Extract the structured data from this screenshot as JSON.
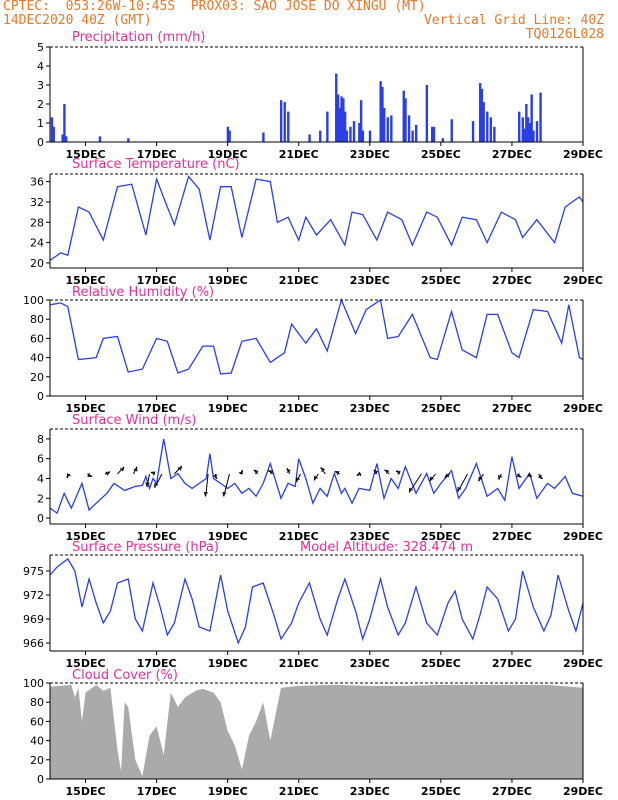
{
  "header": {
    "line1_left": "CPTEC:  053:26W-10:45S  PROX03: SAO JOSE DO XINGU (MT)",
    "line2_left": "14DEC2020 40Z (GMT)",
    "line2_right": "Vertical Grid Line: 40Z",
    "line3_right": "TQ0126L028"
  },
  "colors": {
    "header": "#e8782a",
    "title": "#e0309a",
    "line": "#2b3fe6",
    "cloud": "#aaaaaa",
    "axis": "#000000"
  },
  "x_axis": {
    "range_days": [
      14.0,
      29.0
    ],
    "ticks": [
      {
        "day": 15,
        "label": "15DEC"
      },
      {
        "day": 17,
        "label": "17DEC"
      },
      {
        "day": 19,
        "label": "19DEC"
      },
      {
        "day": 21,
        "label": "21DEC"
      },
      {
        "day": 23,
        "label": "23DEC"
      },
      {
        "day": 25,
        "label": "25DEC"
      },
      {
        "day": 27,
        "label": "27DEC"
      },
      {
        "day": 29,
        "label": "29DEC"
      }
    ]
  },
  "chart_data": [
    {
      "type": "bar",
      "title": "Precipitation (mm/h)",
      "ylim": [
        0,
        5
      ],
      "yticks": [
        0,
        1,
        2,
        3,
        4,
        5
      ],
      "x": [
        14.05,
        14.1,
        14.35,
        14.4,
        14.45,
        15.4,
        16.2,
        19.0,
        19.05,
        20.0,
        20.5,
        20.6,
        20.7,
        21.3,
        21.6,
        21.8,
        22.05,
        22.1,
        22.15,
        22.2,
        22.25,
        22.3,
        22.35,
        22.45,
        22.55,
        22.7,
        22.75,
        22.8,
        23.0,
        23.3,
        23.35,
        23.4,
        23.5,
        23.6,
        23.95,
        24.0,
        24.1,
        24.2,
        24.3,
        24.6,
        24.75,
        24.8,
        25.05,
        25.3,
        25.9,
        26.1,
        26.15,
        26.2,
        26.3,
        26.4,
        26.5,
        27.2,
        27.3,
        27.35,
        27.4,
        27.45,
        27.5,
        27.55,
        27.6,
        27.7,
        27.8
      ],
      "values": [
        1.3,
        0.8,
        0.4,
        2.0,
        0.3,
        0.3,
        0.2,
        0.8,
        0.6,
        0.5,
        2.2,
        2.1,
        1.6,
        0.4,
        0.6,
        1.6,
        3.6,
        2.5,
        1.8,
        2.4,
        2.3,
        1.6,
        0.6,
        0.8,
        1.1,
        1.0,
        2.2,
        0.6,
        0.6,
        3.2,
        2.9,
        1.8,
        1.3,
        1.4,
        2.7,
        2.3,
        1.4,
        0.6,
        0.9,
        3.0,
        0.8,
        0.8,
        0.2,
        1.2,
        1.1,
        3.1,
        2.8,
        2.1,
        1.6,
        1.3,
        0.8,
        1.6,
        1.3,
        0.7,
        2.0,
        1.3,
        1.0,
        2.5,
        0.6,
        1.1,
        2.6
      ]
    },
    {
      "type": "line",
      "title": "Surface Temperature (nC)",
      "ylim": [
        19,
        37.5
      ],
      "yticks": [
        20,
        24,
        28,
        32,
        36
      ],
      "x": [
        14.0,
        14.3,
        14.5,
        14.8,
        15.1,
        15.5,
        15.9,
        16.3,
        16.7,
        17.0,
        17.3,
        17.5,
        17.9,
        18.2,
        18.5,
        18.8,
        19.1,
        19.4,
        19.8,
        20.2,
        20.4,
        20.7,
        21.0,
        21.2,
        21.5,
        21.9,
        22.3,
        22.5,
        22.8,
        23.2,
        23.5,
        23.9,
        24.2,
        24.6,
        24.9,
        25.3,
        25.6,
        26.0,
        26.3,
        26.7,
        27.1,
        27.3,
        27.7,
        28.2,
        28.5,
        28.9,
        29.0
      ],
      "values": [
        20.5,
        22.0,
        21.5,
        31.0,
        30.0,
        24.5,
        35.0,
        35.5,
        25.5,
        36.5,
        31.0,
        27.5,
        37.0,
        34.5,
        24.5,
        35.0,
        35.0,
        25.0,
        36.5,
        36.0,
        28.0,
        29.0,
        24.5,
        29.0,
        25.5,
        28.5,
        23.5,
        30.0,
        29.5,
        24.5,
        30.0,
        28.5,
        23.5,
        30.0,
        29.0,
        23.5,
        29.0,
        28.5,
        24.0,
        30.0,
        28.5,
        25.0,
        28.5,
        24.0,
        31.0,
        33.0,
        32.0
      ]
    },
    {
      "type": "line",
      "title": "Relative Humidity (%)",
      "ylim": [
        0,
        100
      ],
      "yticks": [
        0,
        20,
        40,
        60,
        80,
        100
      ],
      "x": [
        14.0,
        14.3,
        14.5,
        14.8,
        15.3,
        15.5,
        15.9,
        16.2,
        16.6,
        17.0,
        17.3,
        17.6,
        17.9,
        18.3,
        18.6,
        18.8,
        19.1,
        19.4,
        19.8,
        20.2,
        20.6,
        20.8,
        21.2,
        21.5,
        21.8,
        22.2,
        22.6,
        22.9,
        23.3,
        23.5,
        23.8,
        24.2,
        24.4,
        24.7,
        24.9,
        25.3,
        25.6,
        26.0,
        26.3,
        26.6,
        27.0,
        27.2,
        27.6,
        28.0,
        28.4,
        28.6,
        28.9,
        29.0
      ],
      "values": [
        95.0,
        97.0,
        93.0,
        38.0,
        40.0,
        60.0,
        62.0,
        25.0,
        28.0,
        60.0,
        57.0,
        24.0,
        28.0,
        52.0,
        52.0,
        23.0,
        24.0,
        57.0,
        60.0,
        35.0,
        45.0,
        75.0,
        55.0,
        70.0,
        47.0,
        100.0,
        65.0,
        90.0,
        100.0,
        60.0,
        62.0,
        85.0,
        67.0,
        40.0,
        38.0,
        88.0,
        48.0,
        40.0,
        85.0,
        85.0,
        45.0,
        40.0,
        90.0,
        88.0,
        55.0,
        95.0,
        40.0,
        38.0
      ]
    },
    {
      "type": "line",
      "title": "Surface Wind (m/s)",
      "ylim": [
        -0.6,
        9
      ],
      "yticks": [
        0,
        2,
        4,
        6,
        8
      ],
      "x": [
        14.0,
        14.2,
        14.4,
        14.6,
        14.9,
        15.1,
        15.3,
        15.6,
        15.8,
        16.1,
        16.4,
        16.6,
        16.7,
        16.8,
        16.9,
        17.0,
        17.2,
        17.4,
        17.6,
        17.8,
        18.0,
        18.2,
        18.4,
        18.5,
        18.6,
        18.8,
        19.0,
        19.2,
        19.4,
        19.6,
        19.8,
        20.0,
        20.2,
        20.5,
        20.7,
        20.9,
        21.0,
        21.2,
        21.4,
        21.6,
        21.8,
        22.0,
        22.2,
        22.3,
        22.5,
        22.7,
        23.0,
        23.2,
        23.4,
        23.6,
        23.8,
        24.0,
        24.3,
        24.6,
        24.8,
        25.0,
        25.3,
        25.5,
        25.7,
        26.0,
        26.3,
        26.6,
        26.8,
        27.0,
        27.2,
        27.5,
        27.7,
        28.0,
        28.2,
        28.5,
        28.7,
        29.0
      ],
      "values": [
        1.0,
        0.5,
        2.5,
        1.0,
        3.5,
        0.8,
        1.5,
        2.5,
        3.5,
        2.8,
        3.2,
        3.3,
        4.2,
        3.0,
        4.0,
        3.5,
        8.0,
        4.0,
        4.5,
        3.5,
        3.0,
        3.5,
        4.0,
        6.5,
        4.0,
        3.5,
        3.0,
        3.5,
        2.5,
        3.0,
        2.2,
        3.5,
        5.5,
        2.0,
        3.5,
        3.2,
        6.0,
        4.0,
        1.5,
        3.0,
        2.2,
        4.5,
        2.5,
        3.0,
        1.5,
        3.0,
        2.8,
        5.5,
        2.0,
        4.0,
        3.0,
        5.2,
        2.5,
        4.5,
        2.5,
        3.5,
        4.8,
        2.0,
        3.0,
        5.5,
        2.2,
        3.0,
        1.8,
        6.2,
        3.0,
        4.5,
        2.0,
        3.5,
        3.0,
        4.2,
        2.5,
        2.2
      ],
      "arrows": [
        {
          "x": 14.55,
          "u": -0.3,
          "v": -0.5
        },
        {
          "x": 15.05,
          "u": 0.6,
          "v": -0.3
        },
        {
          "x": 15.55,
          "u": 0.6,
          "v": 0.3
        },
        {
          "x": 15.9,
          "u": 0.8,
          "v": 0.9
        },
        {
          "x": 16.35,
          "u": 0.4,
          "v": 0.9
        },
        {
          "x": 16.8,
          "u": -0.3,
          "v": -1.6
        },
        {
          "x": 16.95,
          "u": -0.5,
          "v": 0.2
        },
        {
          "x": 17.15,
          "u": -0.9,
          "v": -1.7
        },
        {
          "x": 17.5,
          "u": 0.9,
          "v": 1.0
        },
        {
          "x": 18.45,
          "u": -0.3,
          "v": -2.8
        },
        {
          "x": 18.65,
          "u": 0.2,
          "v": -0.6
        },
        {
          "x": 19.05,
          "u": -0.7,
          "v": -2.8
        },
        {
          "x": 19.35,
          "u": 0.3,
          "v": 0.5
        },
        {
          "x": 19.85,
          "u": -0.5,
          "v": 0.5
        },
        {
          "x": 20.3,
          "u": -0.7,
          "v": 0.4
        },
        {
          "x": 20.75,
          "u": -0.4,
          "v": 0.7
        },
        {
          "x": 21.05,
          "u": -0.5,
          "v": -1.0
        },
        {
          "x": 21.55,
          "u": -0.5,
          "v": -0.8
        },
        {
          "x": 21.75,
          "u": -0.6,
          "v": 0.8
        },
        {
          "x": 22.15,
          "u": -0.6,
          "v": 0.3
        },
        {
          "x": 22.75,
          "u": -0.5,
          "v": -0.2
        },
        {
          "x": 23.2,
          "u": -0.4,
          "v": 0.5
        },
        {
          "x": 23.55,
          "u": -0.6,
          "v": 0.5
        },
        {
          "x": 23.85,
          "u": -0.5,
          "v": 0.4
        },
        {
          "x": 24.45,
          "u": -1.5,
          "v": -2.3
        },
        {
          "x": 24.85,
          "u": -0.7,
          "v": -0.9
        },
        {
          "x": 25.25,
          "u": -0.6,
          "v": -0.5
        },
        {
          "x": 25.75,
          "u": -1.2,
          "v": -2.2
        },
        {
          "x": 26.2,
          "u": -0.6,
          "v": -0.9
        },
        {
          "x": 26.7,
          "u": -0.3,
          "v": -0.7
        },
        {
          "x": 27.15,
          "u": 0.5,
          "v": -0.4
        },
        {
          "x": 27.45,
          "u": 0.5,
          "v": -0.3
        },
        {
          "x": 27.75,
          "u": 0.5,
          "v": -0.6
        }
      ]
    },
    {
      "type": "line",
      "title": "Surface Pressure (hPa)",
      "annotation": "Model Altitude: 328.474 m",
      "ylim": [
        965,
        977
      ],
      "yticks": [
        966,
        969,
        972,
        975
      ],
      "x": [
        14.0,
        14.2,
        14.5,
        14.7,
        14.9,
        15.1,
        15.3,
        15.5,
        15.7,
        15.9,
        16.2,
        16.4,
        16.6,
        16.9,
        17.1,
        17.3,
        17.5,
        17.8,
        18.0,
        18.2,
        18.5,
        18.8,
        19.0,
        19.3,
        19.5,
        19.7,
        20.0,
        20.3,
        20.5,
        20.8,
        21.0,
        21.3,
        21.6,
        21.8,
        22.1,
        22.3,
        22.6,
        22.8,
        23.0,
        23.3,
        23.5,
        23.8,
        24.0,
        24.3,
        24.6,
        24.9,
        25.2,
        25.4,
        25.6,
        25.9,
        26.1,
        26.3,
        26.6,
        26.9,
        27.1,
        27.3,
        27.6,
        27.9,
        28.1,
        28.3,
        28.6,
        28.8,
        29.0
      ],
      "values": [
        974.5,
        975.5,
        976.5,
        975.0,
        970.5,
        974.0,
        971.0,
        968.5,
        970.0,
        973.5,
        974.0,
        969.0,
        967.5,
        973.5,
        970.5,
        967.0,
        968.5,
        974.0,
        971.5,
        968.0,
        967.5,
        974.5,
        970.0,
        966.0,
        968.0,
        973.0,
        973.5,
        969.5,
        966.5,
        968.5,
        971.0,
        973.5,
        969.0,
        967.0,
        971.5,
        974.0,
        970.0,
        966.5,
        969.0,
        974.0,
        970.5,
        967.0,
        968.5,
        973.0,
        968.5,
        967.0,
        971.0,
        972.5,
        969.0,
        966.5,
        969.5,
        973.0,
        971.5,
        967.5,
        969.0,
        975.0,
        970.5,
        967.5,
        969.5,
        974.5,
        970.0,
        967.5,
        971.0
      ]
    },
    {
      "type": "area",
      "title": "Cloud Cover (%)",
      "ylim": [
        0,
        100
      ],
      "yticks": [
        0,
        20,
        40,
        60,
        80,
        100
      ],
      "x": [
        14.0,
        14.6,
        14.7,
        14.8,
        14.9,
        15.0,
        15.3,
        15.5,
        15.7,
        15.9,
        16.0,
        16.1,
        16.2,
        16.4,
        16.6,
        16.8,
        17.0,
        17.2,
        17.4,
        17.6,
        17.8,
        18.1,
        18.3,
        18.6,
        18.8,
        19.0,
        19.2,
        19.4,
        19.6,
        19.8,
        20.0,
        20.2,
        20.5,
        21.0,
        22.0,
        23.0,
        24.0,
        25.0,
        26.0,
        27.0,
        28.0,
        29.0
      ],
      "values": [
        96.0,
        98.0,
        85.0,
        95.0,
        60.0,
        90.0,
        98.0,
        92.0,
        95.0,
        30.0,
        8.0,
        80.0,
        75.0,
        20.0,
        3.0,
        45.0,
        55.0,
        25.0,
        90.0,
        75.0,
        85.0,
        92.0,
        94.0,
        90.0,
        80.0,
        50.0,
        35.0,
        10.0,
        45.0,
        60.0,
        80.0,
        40.0,
        95.0,
        97.0,
        98.0,
        97.0,
        97.0,
        98.0,
        98.0,
        98.0,
        98.0,
        95.0
      ]
    }
  ]
}
